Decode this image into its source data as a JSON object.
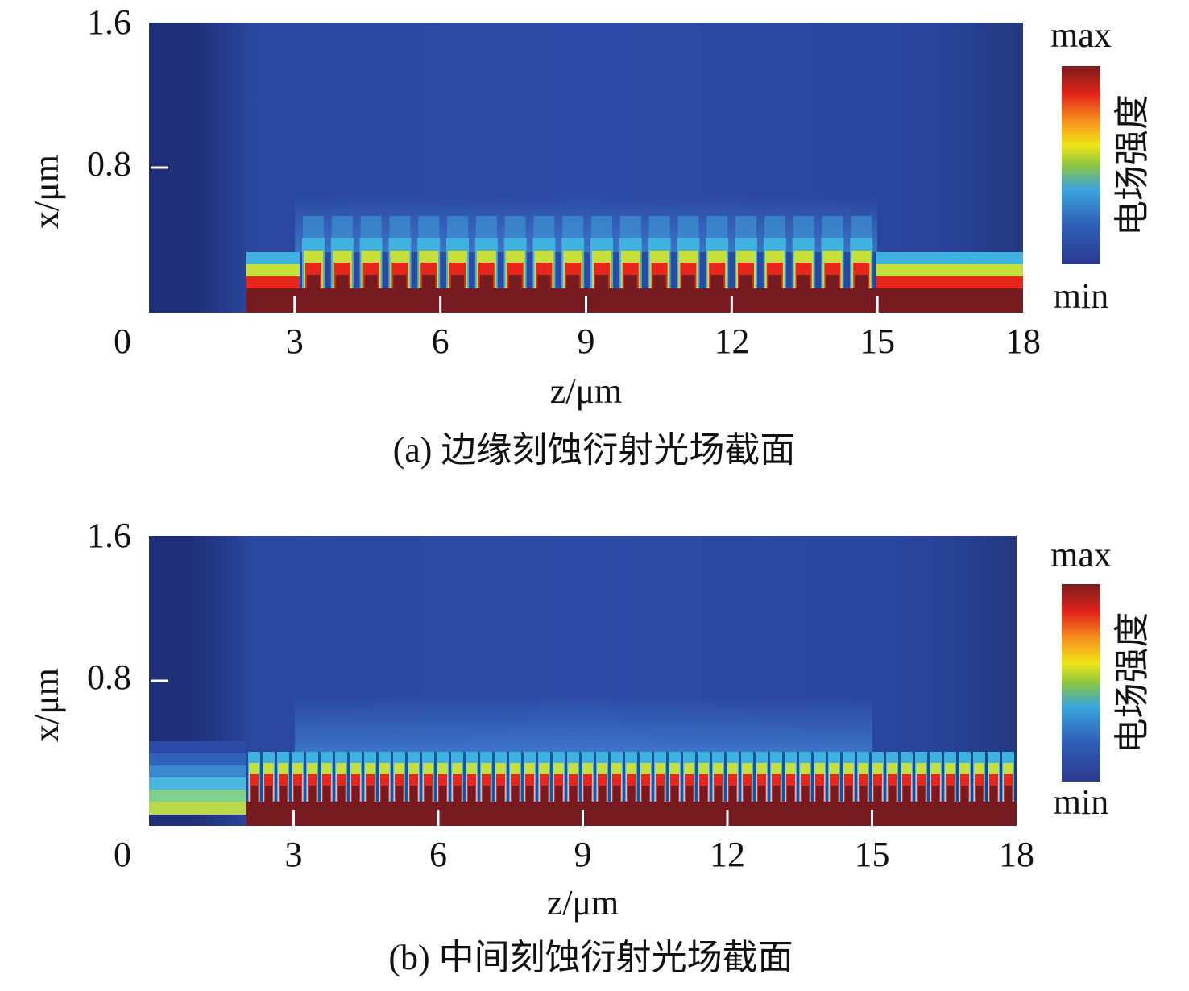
{
  "chart_data": [
    {
      "type": "heatmap",
      "caption": "(a) 边缘刻蚀衍射光场截面",
      "x_label": "z/μm",
      "y_label": "x/μm",
      "xlim": [
        0,
        18
      ],
      "xticks": [
        0,
        3,
        6,
        9,
        12,
        15,
        18
      ],
      "ylim": [
        0,
        1.6
      ],
      "yticks": [
        0.8,
        1.6
      ],
      "colorbar": {
        "label": "电场强度",
        "max_label": "max",
        "min_label": "min"
      }
    },
    {
      "type": "heatmap",
      "caption": "(b) 中间刻蚀衍射光场截面",
      "x_label": "z/μm",
      "y_label": "x/μm",
      "xlim": [
        0,
        18
      ],
      "xticks": [
        0,
        3,
        6,
        9,
        12,
        15,
        18
      ],
      "ylim": [
        0,
        1.6
      ],
      "yticks": [
        0.8,
        1.6
      ],
      "colorbar": {
        "label": "电场强度",
        "max_label": "max",
        "min_label": "min"
      }
    }
  ]
}
